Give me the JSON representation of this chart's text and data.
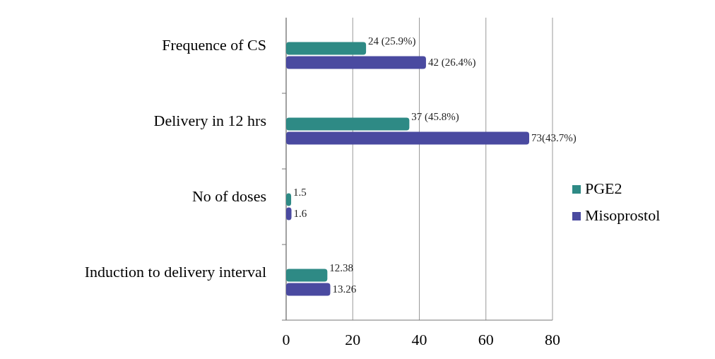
{
  "chart_data": {
    "type": "bar",
    "orientation": "horizontal",
    "categories": [
      "Frequence of CS",
      "Delivery in 12 hrs",
      "No of doses",
      "Induction to delivery interval"
    ],
    "series": [
      {
        "name": "PGE2",
        "color": "#2e8a85",
        "values": [
          24,
          37,
          1.5,
          12.38
        ],
        "value_labels": [
          "24 (25.9%)",
          "37 (45.8%)",
          "1.5",
          "12.38"
        ]
      },
      {
        "name": "Misoprostol",
        "color": "#4a4aa0",
        "values": [
          42,
          73,
          1.6,
          13.26
        ],
        "value_labels": [
          "42 (26.4%)",
          "73(43.7%)",
          "1.6",
          "13.26"
        ]
      }
    ],
    "xlim": [
      0,
      80
    ],
    "xticks": [
      0,
      20,
      40,
      60,
      80
    ],
    "grid": "x",
    "legend": "right"
  }
}
